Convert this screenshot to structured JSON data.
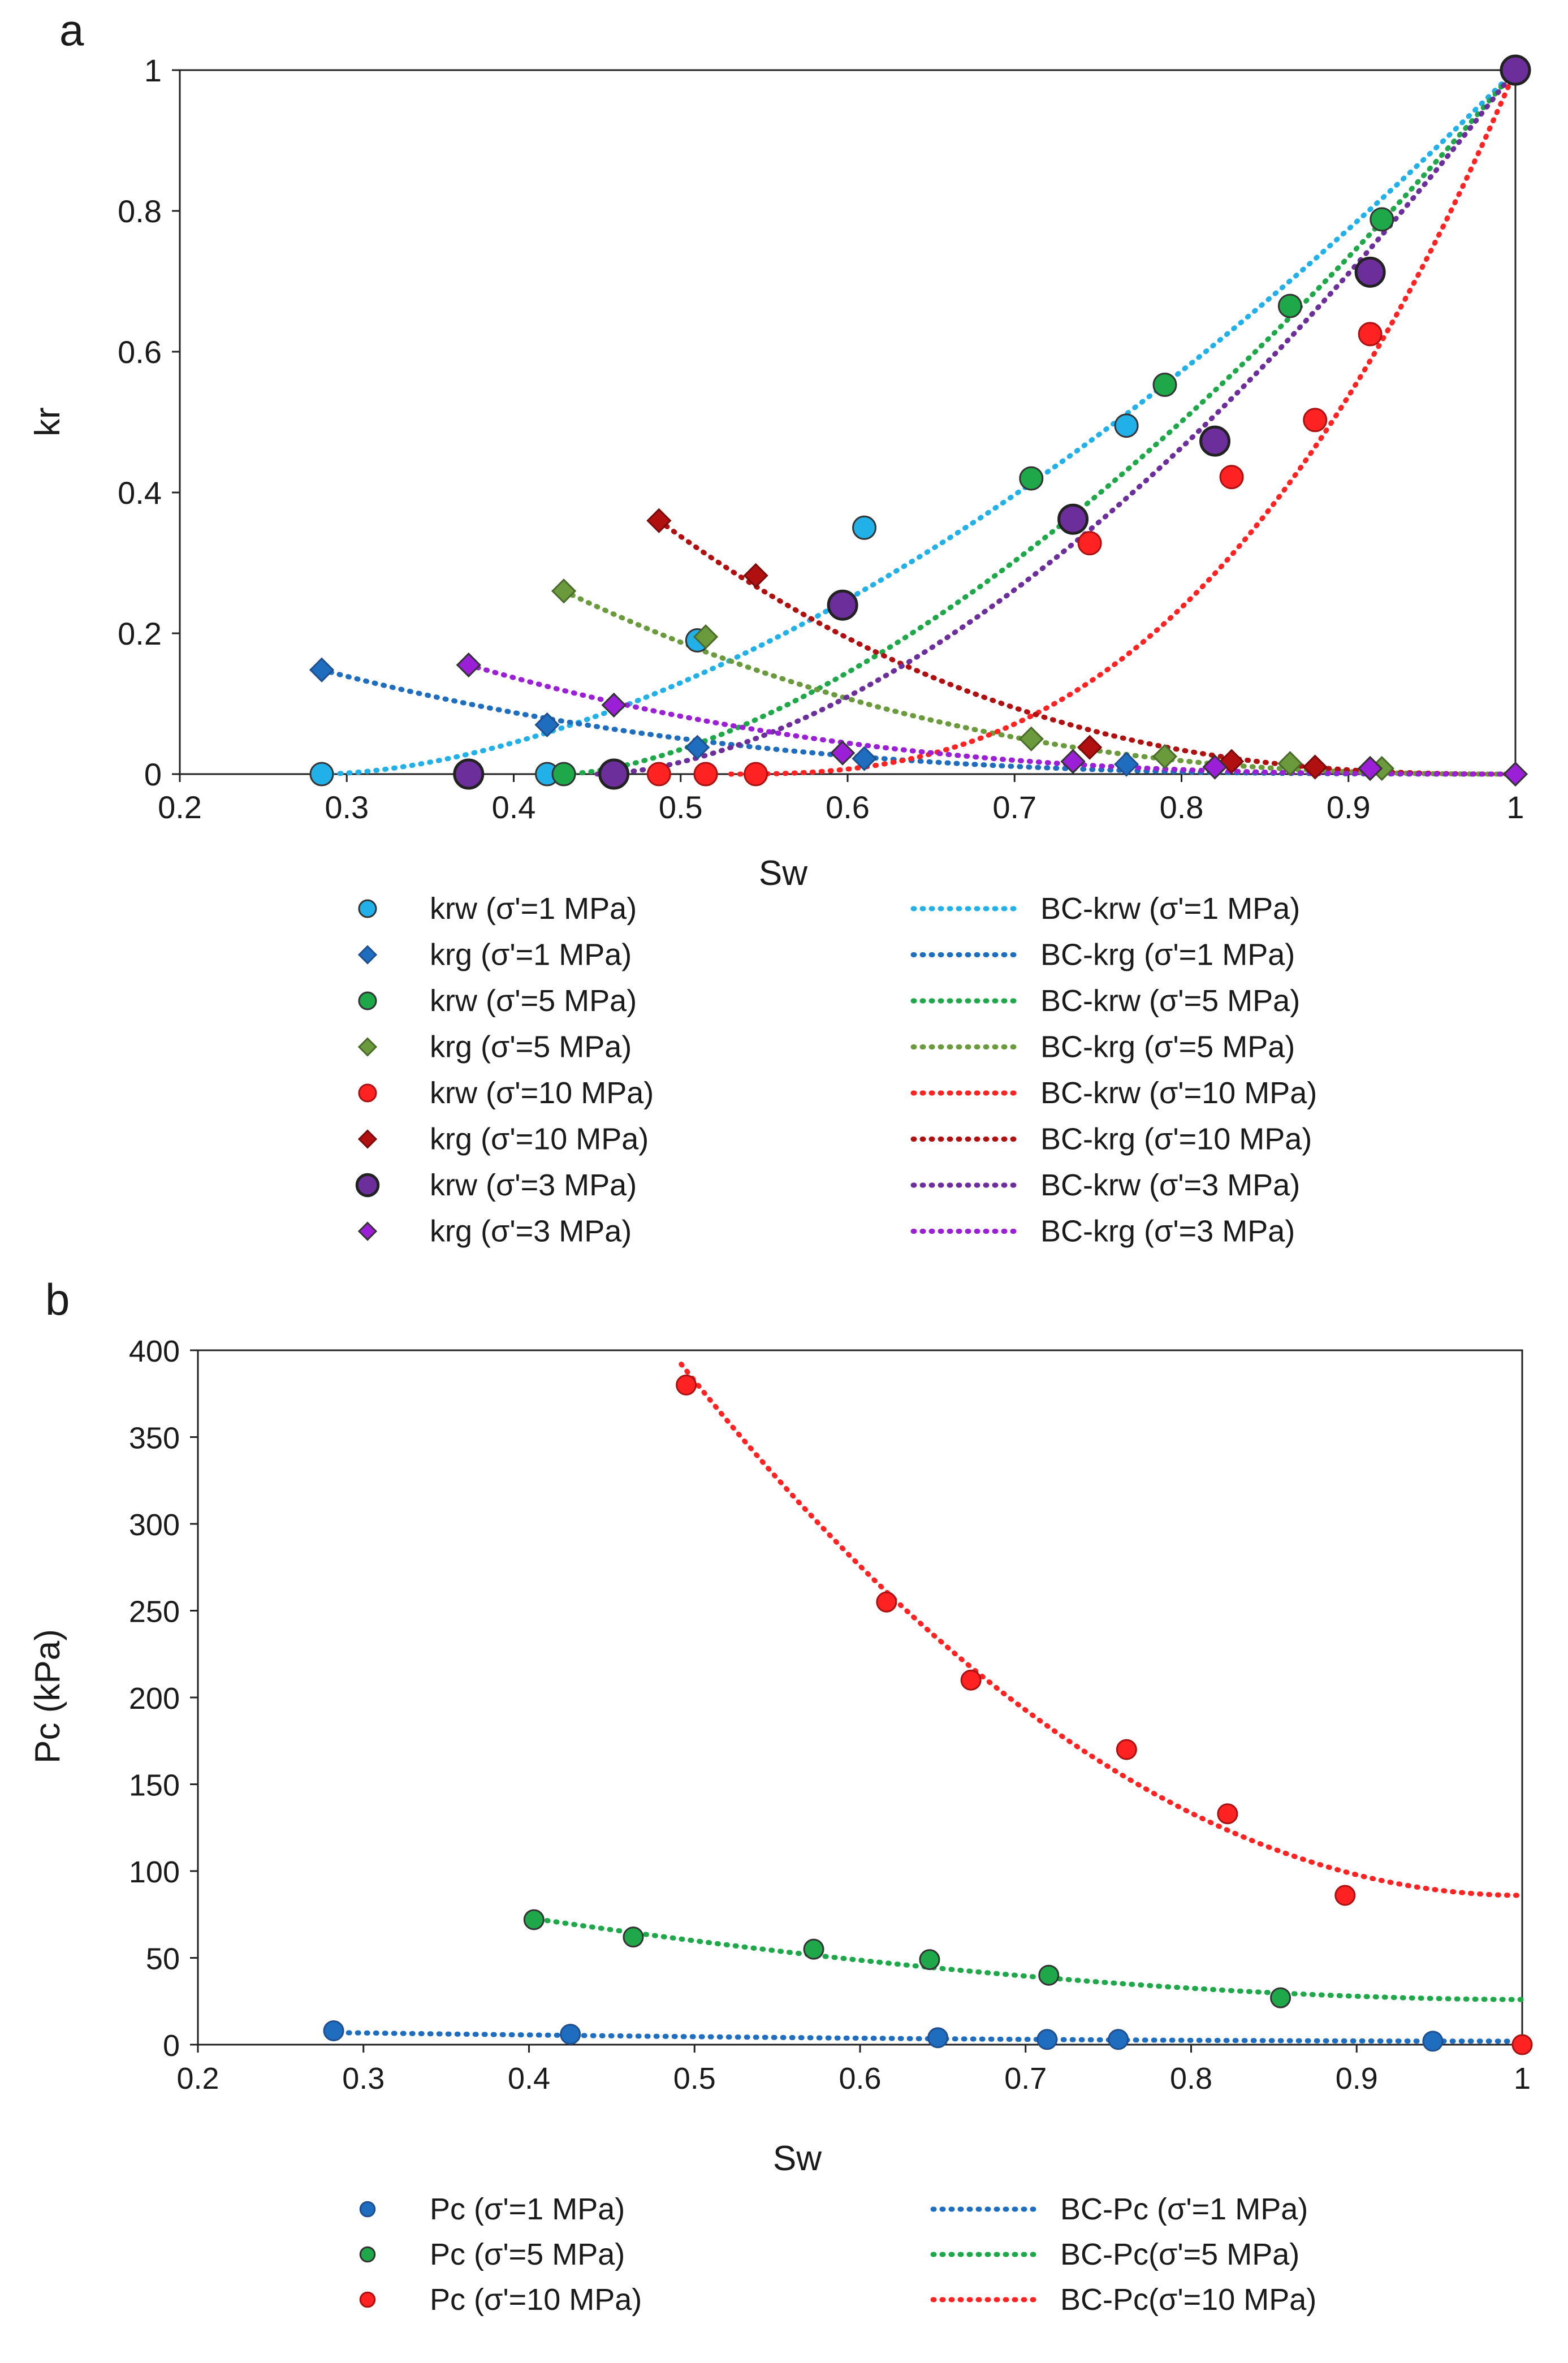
{
  "chart_data": [
    {
      "panel_label": "a",
      "type": "scatter",
      "xlabel": "Sw",
      "ylabel": "kr",
      "xlim": [
        0.2,
        1
      ],
      "ylim": [
        0,
        1
      ],
      "xticks": [
        "0.2",
        "0.3",
        "0.4",
        "0.5",
        "0.6",
        "0.7",
        "0.8",
        "0.9",
        "1"
      ],
      "yticks": [
        "0",
        "0.2",
        "0.4",
        "0.6",
        "0.8",
        "1"
      ],
      "grid": false,
      "colors": {
        "blue_light": "#22b0e8",
        "blue_dark": "#1f6dbf",
        "green": "#1fa84a",
        "green_olive": "#6a9a3c",
        "red": "#ff2222",
        "red_dark": "#b01010",
        "purple": "#6b2e9a",
        "violet": "#9a1fd6"
      },
      "series": [
        {
          "name": "krw (σ'=1 MPa)",
          "kind": "points",
          "marker": "circle",
          "color": "#22b0e8",
          "outline": "#333333",
          "x": [
            0.285,
            0.42,
            0.51,
            0.61,
            0.767,
            1.0
          ],
          "y": [
            0.0,
            0.0,
            0.19,
            0.35,
            0.495,
            1.0
          ]
        },
        {
          "name": "krg (σ'=1 MPa)",
          "kind": "points",
          "marker": "diamond",
          "color": "#1f6dbf",
          "outline": "#1f4f8f",
          "x": [
            0.285,
            0.42,
            0.51,
            0.61,
            0.767
          ],
          "y": [
            0.148,
            0.07,
            0.038,
            0.022,
            0.014
          ]
        },
        {
          "name": "krw (σ'=5 MPa)",
          "kind": "points",
          "marker": "circle",
          "color": "#1fa84a",
          "outline": "#333333",
          "x": [
            0.43,
            0.515,
            0.71,
            0.79,
            0.865,
            0.92
          ],
          "y": [
            0.0,
            0.0,
            0.42,
            0.553,
            0.665,
            0.788
          ]
        },
        {
          "name": "krg (σ'=5 MPa)",
          "kind": "points",
          "marker": "diamond",
          "color": "#6a9a3c",
          "outline": "#4a6a2a",
          "x": [
            0.43,
            0.515,
            0.71,
            0.79,
            0.865,
            0.92
          ],
          "y": [
            0.26,
            0.195,
            0.05,
            0.025,
            0.015,
            0.008
          ]
        },
        {
          "name": "krw (σ'=10 MPa)",
          "kind": "points",
          "marker": "circle",
          "color": "#ff2222",
          "outline": "#aa1111",
          "x": [
            0.487,
            0.515,
            0.545,
            0.745,
            0.83,
            0.88,
            0.913
          ],
          "y": [
            0.0,
            0.0,
            0.0,
            0.328,
            0.422,
            0.503,
            0.625
          ]
        },
        {
          "name": "krg (σ'=10 MPa)",
          "kind": "points",
          "marker": "diamond",
          "color": "#b01010",
          "outline": "#7a0a0a",
          "x": [
            0.487,
            0.545,
            0.745,
            0.83,
            0.88,
            0.913
          ],
          "y": [
            0.36,
            0.282,
            0.038,
            0.018,
            0.01,
            0.008
          ]
        },
        {
          "name": "krw (σ'=3 MPa)",
          "kind": "points",
          "marker": "circle-large",
          "color": "#6b2e9a",
          "outline": "#222222",
          "x": [
            0.373,
            0.46,
            0.597,
            0.735,
            0.82,
            0.913,
            1.0
          ],
          "y": [
            0.0,
            0.0,
            0.24,
            0.362,
            0.473,
            0.713,
            1.0
          ]
        },
        {
          "name": "krg (σ'=3 MPa)",
          "kind": "points",
          "marker": "diamond",
          "color": "#9a1fd6",
          "outline": "#333333",
          "x": [
            0.373,
            0.46,
            0.597,
            0.735,
            0.82,
            0.913,
            1.0
          ],
          "y": [
            0.155,
            0.098,
            0.03,
            0.018,
            0.01,
            0.008,
            0.0
          ]
        },
        {
          "name": "BC-krw (σ'=1 MPa)",
          "kind": "fit",
          "color": "#22b0e8",
          "sw_start": 0.285,
          "sw_end": 1.0,
          "y_start": 0.0,
          "y_end": 1.0,
          "exponent": 1.7
        },
        {
          "name": "BC-krg (σ'=1 MPa)",
          "kind": "fit",
          "color": "#1f6dbf",
          "sw_start": 0.285,
          "sw_end": 1.0,
          "y_start": 0.148,
          "y_end": 0.0,
          "exponent": 3.0
        },
        {
          "name": "BC-krw (σ'=5 MPa)",
          "kind": "fit",
          "color": "#1fa84a",
          "sw_start": 0.43,
          "sw_end": 1.0,
          "y_start": 0.0,
          "y_end": 1.0,
          "exponent": 1.6
        },
        {
          "name": "BC-krg (σ'=5 MPa)",
          "kind": "fit",
          "color": "#6a9a3c",
          "sw_start": 0.43,
          "sw_end": 1.0,
          "y_start": 0.26,
          "y_end": 0.0,
          "exponent": 2.5
        },
        {
          "name": "BC-krw (σ'=10 MPa)",
          "kind": "fit",
          "color": "#ff2222",
          "sw_start": 0.53,
          "sw_end": 1.0,
          "y_start": 0.0,
          "y_end": 1.0,
          "exponent": 2.6
        },
        {
          "name": "BC-krg (σ'=10 MPa)",
          "kind": "fit",
          "color": "#b01010",
          "sw_start": 0.487,
          "sw_end": 1.0,
          "y_start": 0.36,
          "y_end": 0.0,
          "exponent": 2.5
        },
        {
          "name": "BC-krw (σ'=3 MPa)",
          "kind": "fit",
          "color": "#6b2e9a",
          "sw_start": 0.45,
          "sw_end": 1.0,
          "y_start": 0.0,
          "y_end": 1.0,
          "exponent": 1.7
        },
        {
          "name": "BC-krg (σ'=3 MPa)",
          "kind": "fit",
          "color": "#9a1fd6",
          "sw_start": 0.373,
          "sw_end": 1.0,
          "y_start": 0.155,
          "y_end": 0.0,
          "exponent": 2.8
        }
      ],
      "legend": {
        "placement": "below",
        "left_column": [
          "krw (σ'=1 MPa)",
          "krg (σ'=1 MPa)",
          "krw (σ'=5 MPa)",
          "krg (σ'=5 MPa)",
          "krw (σ'=10 MPa)",
          "krg (σ'=10 MPa)",
          "krw (σ'=3 MPa)",
          "krg (σ'=3 MPa)"
        ],
        "right_column": [
          "BC-krw (σ'=1 MPa)",
          "BC-krg (σ'=1 MPa)",
          "BC-krw (σ'=5 MPa)",
          "BC-krg (σ'=5 MPa)",
          "BC-krw (σ'=10 MPa)",
          "BC-krg (σ'=10 MPa)",
          "BC-krw (σ'=3 MPa)",
          "BC-krg (σ'=3 MPa)"
        ]
      }
    },
    {
      "panel_label": "b",
      "type": "scatter",
      "xlabel": "Sw",
      "ylabel": "Pc (kPa)",
      "xlim": [
        0.2,
        1
      ],
      "ylim": [
        0,
        400
      ],
      "xticks": [
        "0.2",
        "0.3",
        "0.4",
        "0.5",
        "0.6",
        "0.7",
        "0.8",
        "0.9",
        "1"
      ],
      "yticks": [
        "0",
        "50",
        "100",
        "150",
        "200",
        "250",
        "300",
        "350",
        "400"
      ],
      "grid": false,
      "series": [
        {
          "name": "Pc (σ'=1 MPa)",
          "kind": "points",
          "marker": "circle",
          "color": "#1f6dbf",
          "outline": "#1f4f8f",
          "x": [
            0.282,
            0.425,
            0.647,
            0.713,
            0.756,
            0.946
          ],
          "y": [
            8,
            6,
            4,
            3,
            3,
            2
          ]
        },
        {
          "name": "Pc (σ'=5 MPa)",
          "kind": "points",
          "marker": "circle",
          "color": "#1fa84a",
          "outline": "#333333",
          "x": [
            0.403,
            0.463,
            0.572,
            0.642,
            0.714,
            0.854
          ],
          "y": [
            72,
            62,
            55,
            49,
            40,
            27
          ]
        },
        {
          "name": "Pc (σ'=10 MPa)",
          "kind": "points",
          "marker": "circle",
          "color": "#ff2222",
          "outline": "#aa1111",
          "x": [
            0.495,
            0.616,
            0.667,
            0.761,
            0.822,
            0.893,
            1.0
          ],
          "y": [
            380,
            255,
            210,
            170,
            133,
            86,
            0
          ]
        },
        {
          "name": "BC-Pc (σ'=1 MPa)",
          "kind": "fit",
          "color": "#1f6dbf",
          "sw_start": 0.28,
          "sw_end": 1.0,
          "y_start": 7,
          "y_end": 2,
          "exponent": 1.8
        },
        {
          "name": "BC-Pc(σ'=5 MPa)",
          "kind": "fit",
          "color": "#1fa84a",
          "sw_start": 0.4,
          "sw_end": 1.0,
          "y_start": 73,
          "y_end": 26,
          "exponent": 1.8
        },
        {
          "name": "BC-Pc(σ'=10 MPa)",
          "kind": "fit",
          "color": "#ff2222",
          "sw_start": 0.492,
          "sw_end": 1.0,
          "y_start": 392,
          "y_end": 86,
          "exponent": 2.0
        }
      ],
      "legend": {
        "placement": "below",
        "left_column": [
          "Pc (σ'=1 MPa)",
          "Pc (σ'=5 MPa)",
          "Pc (σ'=10 MPa)"
        ],
        "right_column": [
          "BC-Pc (σ'=1 MPa)",
          "BC-Pc(σ'=5 MPa)",
          "BC-Pc(σ'=10 MPa)"
        ]
      }
    }
  ]
}
